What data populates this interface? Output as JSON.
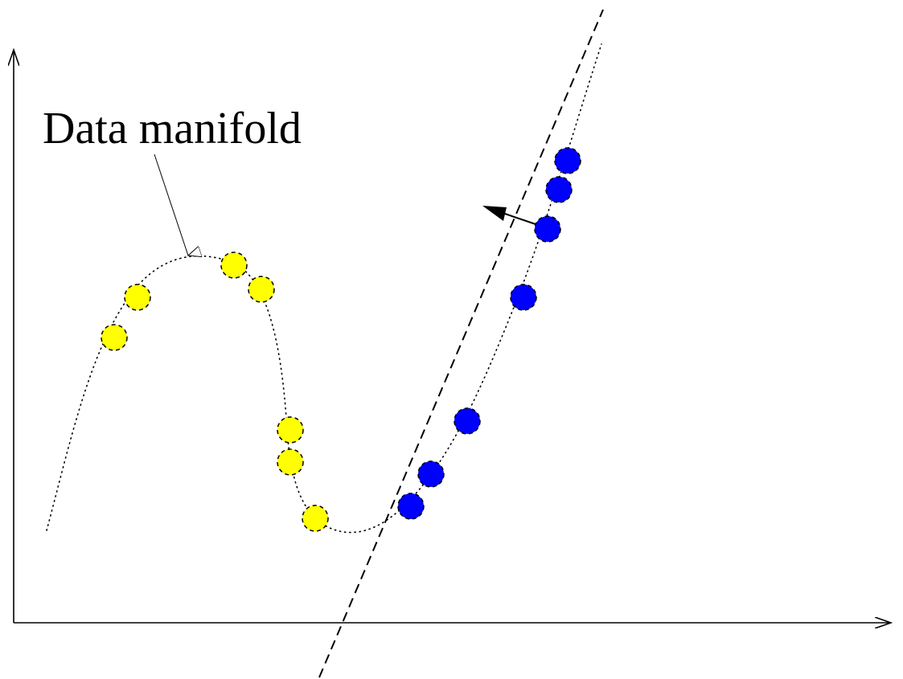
{
  "annotation": {
    "label": "Data manifold"
  },
  "colors": {
    "class_a": "#ffff00",
    "class_b": "#0000ff",
    "line": "#000000",
    "background": "#ffffff"
  },
  "groups": {
    "class_a_name": "yellow",
    "class_b_name": "blue"
  }
}
